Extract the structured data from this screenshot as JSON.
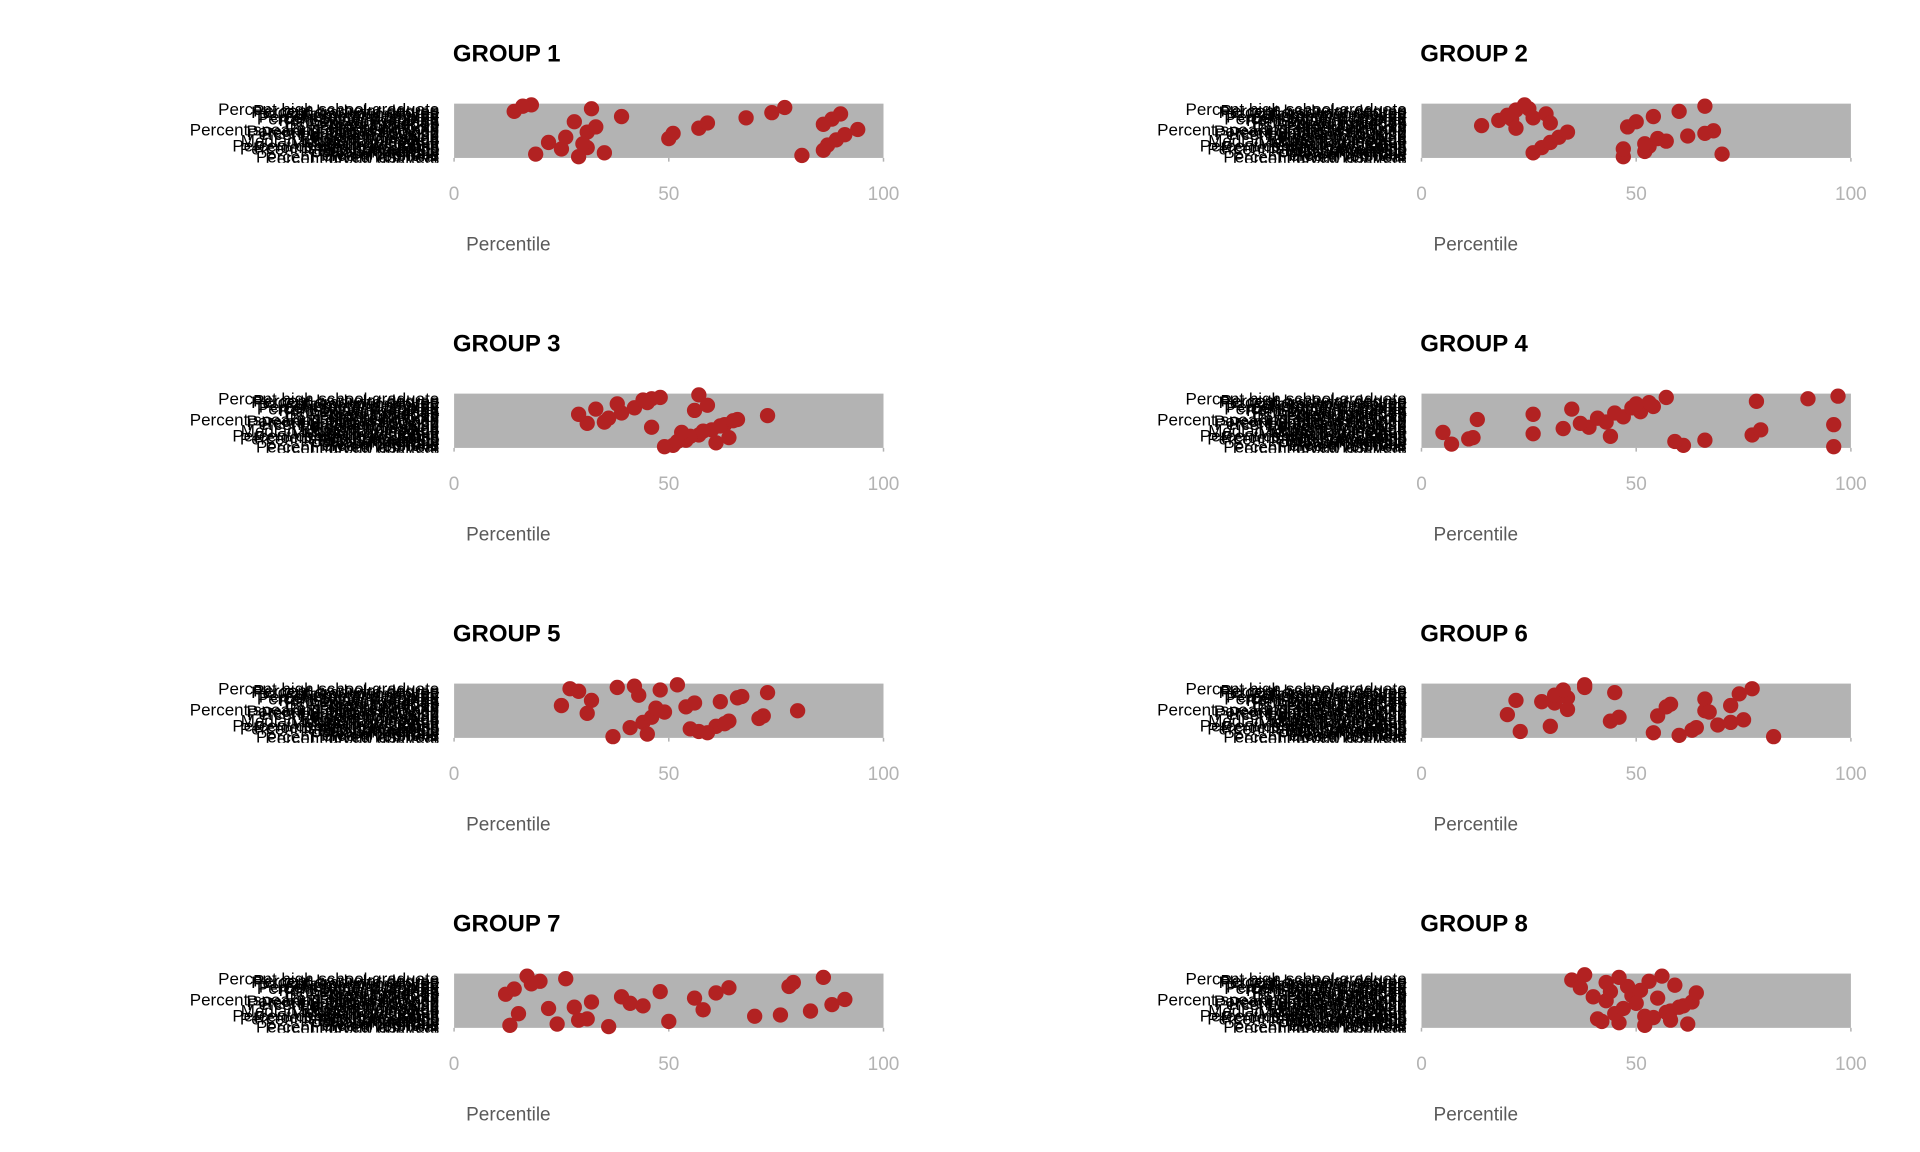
{
  "chart_data": {
    "type": "scatter",
    "layout": "small-multiples-4x2",
    "xlabel": "Percentile",
    "xlim": [
      0,
      100
    ],
    "xticks": [
      0,
      50,
      100
    ],
    "panel_background": "#b3b3b3",
    "point_color": "#b22222",
    "category_labels": [
      "Percent high school graduate",
      "Percent bachelor degree",
      "Percent graduate degree",
      "Percent unemployed",
      "Percent in poverty",
      "Percent renter occupied",
      "Percent owner occupied",
      "Percent single parent",
      "Percent working age",
      "Percent over 65",
      "Percent under 18",
      "Percent minority",
      "Percent foreign born",
      "Percent speaking other language",
      "Percent public assistance",
      "Percent vacant housing",
      "Percent crowded housing",
      "Percent no vehicle",
      "Percent disabled",
      "Percent uninsured",
      "Median household income",
      "Median home value",
      "Median gross rent",
      "Percent commute by transit",
      "Percent work from home",
      "Percent family households",
      "Percent married",
      "Population density",
      "Percent female",
      "Percent veterans",
      "Percent moved last year",
      "Percent group quarters"
    ],
    "panels": [
      {
        "title": "GROUP 1",
        "x": [
          18,
          35,
          31,
          22,
          26,
          31,
          33,
          28,
          39,
          14,
          16,
          19,
          25,
          30,
          50,
          51,
          57,
          59,
          68,
          74,
          77,
          81,
          86,
          87,
          89,
          91,
          94,
          86,
          88,
          90,
          32,
          29
        ]
      },
      {
        "title": "GROUP 2",
        "x": [
          21,
          29,
          25,
          47,
          52,
          53,
          57,
          62,
          68,
          14,
          18,
          20,
          22,
          24,
          26,
          28,
          30,
          32,
          34,
          48,
          50,
          54,
          60,
          66,
          70,
          47,
          52,
          55,
          66,
          22,
          30,
          26
        ]
      },
      {
        "title": "GROUP 3",
        "x": [
          31,
          36,
          39,
          42,
          45,
          48,
          51,
          54,
          57,
          60,
          63,
          66,
          29,
          33,
          38,
          46,
          49,
          52,
          55,
          58,
          62,
          65,
          73,
          56,
          59,
          44,
          57,
          61,
          64,
          53,
          46,
          35
        ]
      },
      {
        "title": "GROUP 4",
        "x": [
          12,
          5,
          39,
          43,
          47,
          51,
          54,
          78,
          97,
          7,
          11,
          26,
          33,
          37,
          41,
          45,
          49,
          53,
          57,
          61,
          66,
          77,
          79,
          96,
          13,
          26,
          35,
          50,
          90,
          96,
          59,
          44
        ]
      },
      {
        "title": "GROUP 5",
        "x": [
          27,
          37,
          57,
          61,
          64,
          72,
          80,
          25,
          32,
          43,
          48,
          52,
          59,
          41,
          44,
          46,
          49,
          54,
          62,
          67,
          29,
          42,
          45,
          55,
          63,
          71,
          31,
          47,
          56,
          66,
          73,
          38
        ]
      },
      {
        "title": "GROUP 6",
        "x": [
          31,
          34,
          45,
          38,
          60,
          63,
          69,
          75,
          20,
          34,
          58,
          66,
          74,
          77,
          82,
          23,
          30,
          44,
          55,
          66,
          72,
          22,
          31,
          33,
          38,
          54,
          64,
          72,
          46,
          67,
          57,
          28
        ]
      },
      {
        "title": "GROUP 7",
        "x": [
          28,
          32,
          39,
          48,
          78,
          20,
          17,
          24,
          31,
          15,
          22,
          41,
          56,
          61,
          64,
          79,
          86,
          13,
          29,
          76,
          58,
          88,
          91,
          12,
          14,
          18,
          26,
          36,
          50,
          70,
          83,
          44
        ]
      },
      {
        "title": "GROUP 8",
        "x": [
          42,
          52,
          58,
          61,
          43,
          49,
          51,
          59,
          35,
          38,
          46,
          54,
          57,
          60,
          63,
          40,
          44,
          48,
          53,
          56,
          62,
          41,
          45,
          47,
          50,
          55,
          64,
          37,
          43,
          46,
          52,
          58
        ]
      }
    ]
  }
}
